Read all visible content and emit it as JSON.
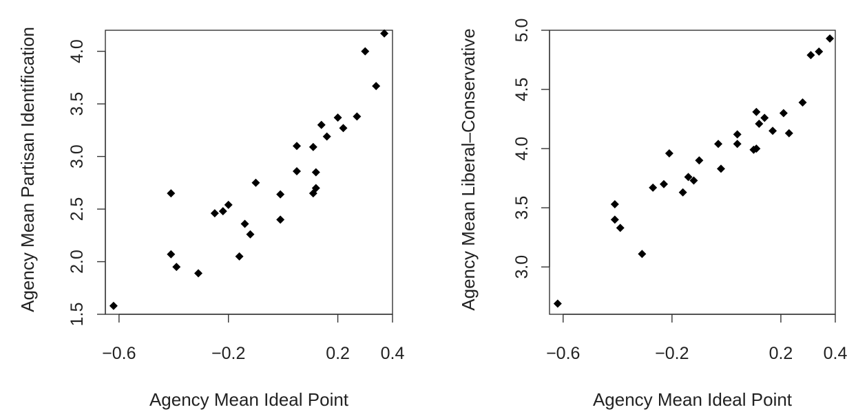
{
  "chart_data": [
    {
      "type": "scatter",
      "xlabel": "Agency Mean Ideal Point",
      "ylabel": "Agency Mean Partisan Identification",
      "xlim": [
        -0.65,
        0.4
      ],
      "ylim": [
        1.5,
        4.2
      ],
      "xticks": [
        "-0.6",
        "-0.2",
        "0.2",
        "0.4"
      ],
      "xtick_values": [
        -0.6,
        -0.2,
        0.2,
        0.4
      ],
      "yticks": [
        "1.5",
        "2.0",
        "2.5",
        "3.0",
        "3.5",
        "4.0"
      ],
      "ytick_values": [
        1.5,
        2.0,
        2.5,
        3.0,
        3.5,
        4.0
      ],
      "grid": false,
      "marker": "diamond",
      "marker_color": "#000000",
      "points": [
        {
          "x": -0.62,
          "y": 1.58
        },
        {
          "x": -0.41,
          "y": 2.65
        },
        {
          "x": -0.41,
          "y": 2.07
        },
        {
          "x": -0.39,
          "y": 1.95
        },
        {
          "x": -0.31,
          "y": 1.89
        },
        {
          "x": -0.25,
          "y": 2.46
        },
        {
          "x": -0.22,
          "y": 2.48
        },
        {
          "x": -0.2,
          "y": 2.54
        },
        {
          "x": -0.16,
          "y": 2.05
        },
        {
          "x": -0.14,
          "y": 2.36
        },
        {
          "x": -0.12,
          "y": 2.26
        },
        {
          "x": -0.1,
          "y": 2.75
        },
        {
          "x": -0.01,
          "y": 2.4
        },
        {
          "x": -0.01,
          "y": 2.64
        },
        {
          "x": 0.05,
          "y": 3.1
        },
        {
          "x": 0.05,
          "y": 2.86
        },
        {
          "x": 0.11,
          "y": 2.65
        },
        {
          "x": 0.11,
          "y": 3.09
        },
        {
          "x": 0.12,
          "y": 2.7
        },
        {
          "x": 0.12,
          "y": 2.85
        },
        {
          "x": 0.14,
          "y": 3.3
        },
        {
          "x": 0.16,
          "y": 3.19
        },
        {
          "x": 0.2,
          "y": 3.37
        },
        {
          "x": 0.22,
          "y": 3.27
        },
        {
          "x": 0.27,
          "y": 3.38
        },
        {
          "x": 0.3,
          "y": 4.0
        },
        {
          "x": 0.34,
          "y": 3.67
        },
        {
          "x": 0.37,
          "y": 4.17
        }
      ]
    },
    {
      "type": "scatter",
      "xlabel": "Agency Mean Ideal Point",
      "ylabel": "Agency Mean Liberal–Conservative",
      "xlim": [
        -0.65,
        0.4
      ],
      "ylim": [
        2.6,
        5.0
      ],
      "xticks": [
        "-0.6",
        "-0.2",
        "0.2",
        "0.4"
      ],
      "xtick_values": [
        -0.6,
        -0.2,
        0.2,
        0.4
      ],
      "yticks": [
        "3.0",
        "3.5",
        "4.0",
        "4.5",
        "5.0"
      ],
      "ytick_values": [
        3.0,
        3.5,
        4.0,
        4.5,
        5.0
      ],
      "grid": false,
      "marker": "diamond",
      "marker_color": "#000000",
      "points": [
        {
          "x": -0.62,
          "y": 2.69
        },
        {
          "x": -0.41,
          "y": 3.53
        },
        {
          "x": -0.41,
          "y": 3.4
        },
        {
          "x": -0.39,
          "y": 3.33
        },
        {
          "x": -0.31,
          "y": 3.11
        },
        {
          "x": -0.27,
          "y": 3.67
        },
        {
          "x": -0.23,
          "y": 3.7
        },
        {
          "x": -0.21,
          "y": 3.96
        },
        {
          "x": -0.16,
          "y": 3.63
        },
        {
          "x": -0.14,
          "y": 3.76
        },
        {
          "x": -0.12,
          "y": 3.73
        },
        {
          "x": -0.1,
          "y": 3.9
        },
        {
          "x": -0.03,
          "y": 4.04
        },
        {
          "x": -0.02,
          "y": 3.83
        },
        {
          "x": 0.04,
          "y": 4.12
        },
        {
          "x": 0.04,
          "y": 4.04
        },
        {
          "x": 0.1,
          "y": 3.99
        },
        {
          "x": 0.11,
          "y": 4.0
        },
        {
          "x": 0.11,
          "y": 4.31
        },
        {
          "x": 0.12,
          "y": 4.21
        },
        {
          "x": 0.14,
          "y": 4.26
        },
        {
          "x": 0.17,
          "y": 4.15
        },
        {
          "x": 0.21,
          "y": 4.3
        },
        {
          "x": 0.23,
          "y": 4.13
        },
        {
          "x": 0.28,
          "y": 4.39
        },
        {
          "x": 0.31,
          "y": 4.79
        },
        {
          "x": 0.34,
          "y": 4.82
        },
        {
          "x": 0.38,
          "y": 4.93
        }
      ]
    }
  ]
}
